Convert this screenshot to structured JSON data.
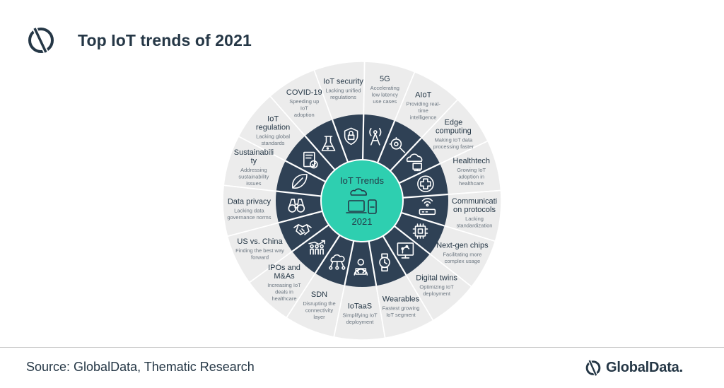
{
  "header": {
    "title": "Top IoT trends of 2021"
  },
  "footer": {
    "source": "Source: GlobalData, Thematic Research",
    "brand": "GlobalData."
  },
  "hub": {
    "title": "IoT Trends",
    "year": "2021",
    "icon": "connected-devices-icon"
  },
  "colors": {
    "accent": "#2ecfb0",
    "navy": "#253746",
    "ring_dark": "#2f4155",
    "outer_ring": "#ececec"
  },
  "segments": [
    {
      "title_lines": [
        "IoT security"
      ],
      "desc_lines": [
        "Lacking unified",
        "regulations"
      ],
      "icon": "lock-shield-icon"
    },
    {
      "title_lines": [
        "5G"
      ],
      "desc_lines": [
        "Accelerating",
        "low latency",
        "use cases"
      ],
      "icon": "antenna-tower-icon"
    },
    {
      "title_lines": [
        "AIoT"
      ],
      "desc_lines": [
        "Providing real-",
        "time",
        "intelligence"
      ],
      "icon": "ai-gear-magnifier-icon"
    },
    {
      "title_lines": [
        "Edge",
        "computing"
      ],
      "desc_lines": [
        "Making IoT data",
        "processing faster"
      ],
      "icon": "cloud-computer-icon"
    },
    {
      "title_lines": [
        "Healthtech"
      ],
      "desc_lines": [
        "Growing IoT",
        "adoption in",
        "healthcare"
      ],
      "icon": "medical-cross-icon"
    },
    {
      "title_lines": [
        "Communicati",
        "on protocols"
      ],
      "desc_lines": [
        "Lacking",
        "standardization"
      ],
      "icon": "router-icon"
    },
    {
      "title_lines": [
        "Next-gen chips"
      ],
      "desc_lines": [
        "Facilitating more",
        "complex usage"
      ],
      "icon": "chip-icon"
    },
    {
      "title_lines": [
        "Digital twins"
      ],
      "desc_lines": [
        "Optimizing IoT",
        "deployment"
      ],
      "icon": "robot-arm-icon"
    },
    {
      "title_lines": [
        "Wearables"
      ],
      "desc_lines": [
        "Fastest growing",
        "IoT segment"
      ],
      "icon": "smartwatch-icon"
    },
    {
      "title_lines": [
        "IoTaaS"
      ],
      "desc_lines": [
        "Simplifying IoT",
        "deployment"
      ],
      "icon": "developer-icon"
    },
    {
      "title_lines": [
        "SDN"
      ],
      "desc_lines": [
        "Disrupting the",
        "connectivity",
        "layer"
      ],
      "icon": "cloud-network-icon"
    },
    {
      "title_lines": [
        "IPOs and",
        "M&As"
      ],
      "desc_lines": [
        "Increasing IoT",
        "deals in",
        "healthcare"
      ],
      "icon": "growth-people-icon"
    },
    {
      "title_lines": [
        "US vs. China"
      ],
      "desc_lines": [
        "Finding the best way",
        "forward"
      ],
      "icon": "handshake-icon"
    },
    {
      "title_lines": [
        "Data privacy"
      ],
      "desc_lines": [
        "Lacking  data",
        "governance norms"
      ],
      "icon": "binoculars-icon"
    },
    {
      "title_lines": [
        "Sustainabili",
        "ty"
      ],
      "desc_lines": [
        "Addressing",
        "sustainability",
        "issues"
      ],
      "icon": "leaf-icon"
    },
    {
      "title_lines": [
        "IoT",
        "regulation"
      ],
      "desc_lines": [
        "Lacking global",
        "standards"
      ],
      "icon": "regulation-book-icon"
    },
    {
      "title_lines": [
        "COVID-19"
      ],
      "desc_lines": [
        "Speeding up",
        "IoT",
        "adoption"
      ],
      "icon": "flask-icon"
    }
  ]
}
